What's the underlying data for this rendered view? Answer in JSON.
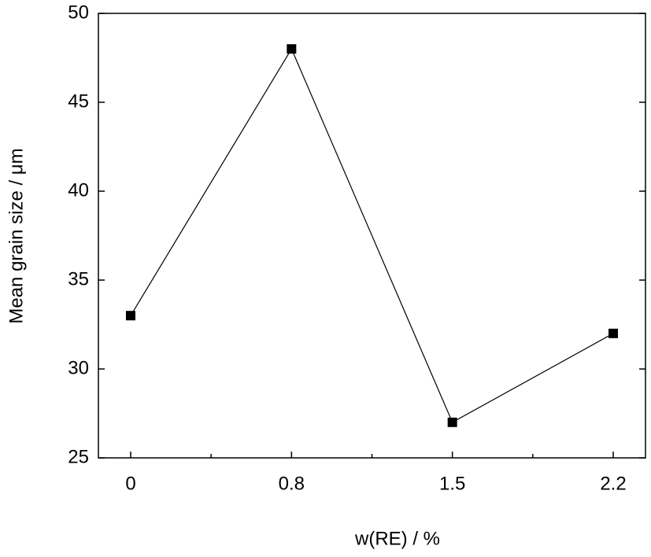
{
  "chart_data": {
    "type": "line",
    "x_label": "w(RE) / %",
    "y_label": "Mean grain size / μm",
    "categories": [
      "0",
      "0.8",
      "1.5",
      "2.2"
    ],
    "series": [
      {
        "name": "Mean grain size",
        "color": "#000000",
        "values": [
          33,
          48,
          27,
          32
        ]
      }
    ],
    "ylim": [
      25,
      50
    ],
    "yticks": [
      25,
      30,
      35,
      40,
      45,
      50
    ]
  }
}
